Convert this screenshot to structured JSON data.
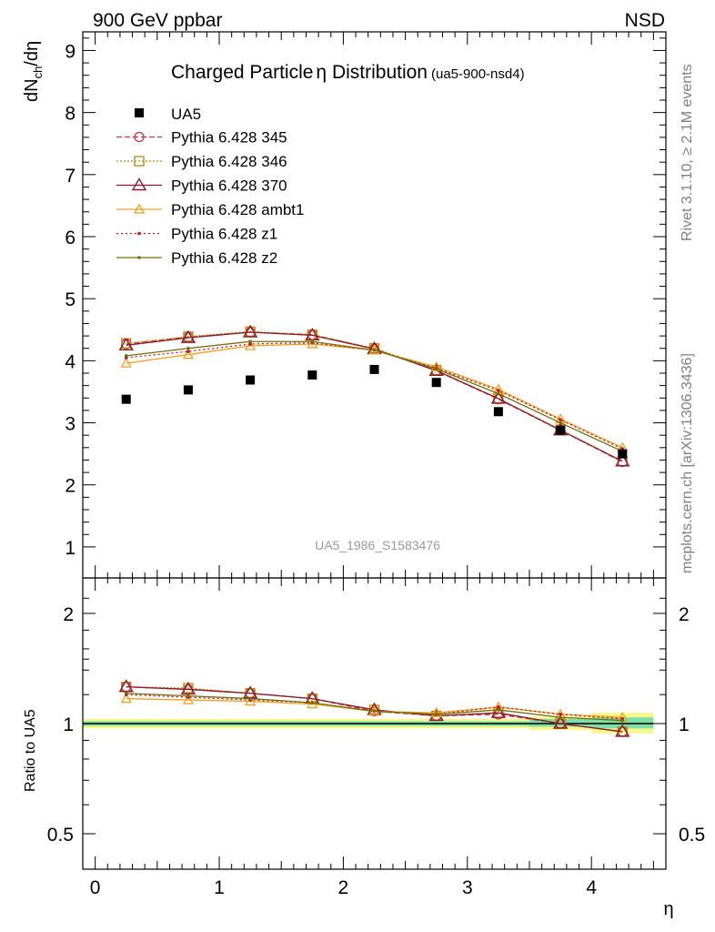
{
  "header": {
    "left": "900 GeV ppbar",
    "right": "NSD"
  },
  "side_labels": {
    "rivet": "Rivet 3.1.10, ≥ 2.1M events",
    "mcplots": "mcplots.cern.ch [arXiv:1306.3436]"
  },
  "watermark": "UA5_1986_S1583476",
  "chart_data": [
    {
      "type": "line",
      "title": "Charged Particle",
      "title_symbol": "η",
      "title_rest": " Distribution",
      "title_tag": "(ua5-900-nsd4)",
      "ylabel_main": "dN",
      "ylabel_sub": "ch",
      "ylabel_rest": "/dη",
      "xlabel": "η",
      "xlim": [
        -0.1,
        4.6
      ],
      "ylim": [
        0.5,
        9.3
      ],
      "yticks": [
        "1",
        "2",
        "3",
        "4",
        "5",
        "6",
        "7",
        "8",
        "9"
      ],
      "x": [
        0.25,
        0.75,
        1.25,
        1.75,
        2.25,
        2.75,
        3.25,
        3.75,
        4.25
      ],
      "data": {
        "name": "UA5",
        "values": [
          3.38,
          3.53,
          3.69,
          3.77,
          3.86,
          3.65,
          3.18,
          2.88,
          2.5
        ]
      },
      "series": [
        {
          "name": "Pythia 6.428 345",
          "color": "#cc3344",
          "dash": "6,3",
          "marker": "circle",
          "values": [
            4.27,
            4.38,
            4.46,
            4.42,
            4.19,
            3.84,
            3.38,
            2.88,
            2.37
          ]
        },
        {
          "name": "Pythia 6.428 346",
          "color": "#b8860b",
          "dash": "2,2",
          "marker": "square",
          "values": [
            4.28,
            4.39,
            4.47,
            4.42,
            4.2,
            3.85,
            3.39,
            2.89,
            2.38
          ]
        },
        {
          "name": "Pythia 6.428 370",
          "color": "#8b1a2b",
          "dash": "",
          "marker": "triangle",
          "values": [
            4.25,
            4.37,
            4.46,
            4.41,
            4.19,
            3.84,
            3.39,
            2.88,
            2.38
          ]
        },
        {
          "name": "Pythia 6.428 ambt1",
          "color": "#f0a020",
          "dash": "",
          "marker": "triangle-small",
          "values": [
            3.96,
            4.1,
            4.24,
            4.27,
            4.17,
            3.9,
            3.54,
            3.06,
            2.6
          ]
        },
        {
          "name": "Pythia 6.428 z1",
          "color": "#cc1111",
          "dash": "2,3",
          "marker": "dot",
          "values": [
            4.05,
            4.15,
            4.27,
            4.29,
            4.17,
            3.88,
            3.52,
            3.05,
            2.58
          ]
        },
        {
          "name": "Pythia 6.428 z2",
          "color": "#707010",
          "dash": "",
          "marker": "dot",
          "values": [
            4.08,
            4.2,
            4.31,
            4.31,
            4.17,
            3.87,
            3.47,
            3.0,
            2.54
          ]
        }
      ]
    },
    {
      "type": "line",
      "ylabel": "Ratio to UA5",
      "yticks": [
        "0.5",
        "1",
        "2"
      ],
      "xticks": [
        "0",
        "1",
        "2",
        "3",
        "4"
      ],
      "ylim": [
        0.4,
        2.5
      ],
      "log_scale": true,
      "x": [
        0.25,
        0.75,
        1.25,
        1.75,
        2.25,
        2.75,
        3.25,
        3.75,
        4.25
      ],
      "series": [
        {
          "name": "Pythia 6.428 345",
          "values": [
            1.26,
            1.24,
            1.21,
            1.17,
            1.08,
            1.05,
            1.06,
            1.0,
            0.95
          ]
        },
        {
          "name": "Pythia 6.428 346",
          "values": [
            1.26,
            1.25,
            1.21,
            1.17,
            1.09,
            1.05,
            1.07,
            1.0,
            0.95
          ]
        },
        {
          "name": "Pythia 6.428 370",
          "values": [
            1.26,
            1.24,
            1.21,
            1.17,
            1.09,
            1.05,
            1.07,
            1.0,
            0.95
          ]
        },
        {
          "name": "Pythia 6.428 ambt1",
          "values": [
            1.17,
            1.16,
            1.15,
            1.13,
            1.08,
            1.07,
            1.11,
            1.06,
            1.04
          ]
        },
        {
          "name": "Pythia 6.428 z1",
          "values": [
            1.2,
            1.18,
            1.16,
            1.14,
            1.08,
            1.06,
            1.11,
            1.06,
            1.03
          ]
        },
        {
          "name": "Pythia 6.428 z2",
          "values": [
            1.21,
            1.19,
            1.17,
            1.14,
            1.08,
            1.06,
            1.09,
            1.04,
            1.02
          ]
        }
      ],
      "bands": [
        {
          "x0": -0.1,
          "x1": 3.5,
          "inner": [
            0.985,
            1.015
          ],
          "outer": [
            0.97,
            1.03
          ]
        },
        {
          "x0": 3.5,
          "x1": 4.0,
          "inner": [
            0.98,
            1.03
          ],
          "outer": [
            0.96,
            1.045
          ]
        },
        {
          "x0": 4.0,
          "x1": 4.5,
          "inner": [
            0.97,
            1.04
          ],
          "outer": [
            0.94,
            1.07
          ]
        }
      ]
    }
  ],
  "colors": {
    "band_inner": "#7ee0a8",
    "band_outer": "#f7f78a",
    "data": "#000000"
  }
}
